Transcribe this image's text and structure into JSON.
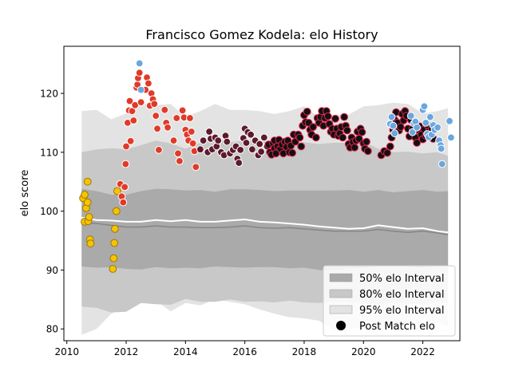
{
  "chart_data": {
    "type": "scatter",
    "title": "Francisco Gomez Kodela: elo History",
    "xlabel": "",
    "ylabel": "elo score",
    "xlim": [
      2009.9,
      2023.25
    ],
    "ylim": [
      78,
      128
    ],
    "x_ticks": [
      2010,
      2012,
      2014,
      2016,
      2018,
      2020,
      2022
    ],
    "y_ticks": [
      80,
      90,
      100,
      110,
      120
    ],
    "grid": false,
    "legend_placement": "lower right",
    "legend": [
      {
        "label": "50% elo Interval",
        "kind": "band",
        "color": "#aaaaaa"
      },
      {
        "label": "80% elo Interval",
        "kind": "band",
        "color": "#c8c8c8"
      },
      {
        "label": "95% elo Interval",
        "kind": "band",
        "color": "#e3e3e3"
      },
      {
        "label": "Post Match elo",
        "kind": "marker",
        "color": "#000000"
      }
    ],
    "bands": {
      "x": [
        2010.5,
        2011.0,
        2011.5,
        2012.0,
        2012.5,
        2013.0,
        2013.5,
        2014.0,
        2014.5,
        2015.0,
        2015.5,
        2016.0,
        2016.5,
        2017.0,
        2017.5,
        2018.0,
        2018.5,
        2019.0,
        2019.5,
        2020.0,
        2020.5,
        2021.0,
        2021.5,
        2022.0,
        2022.5,
        2022.85
      ],
      "p95_upper": [
        117.0,
        117.2,
        115.6,
        116.6,
        118.4,
        118.0,
        118.2,
        116.0,
        117.0,
        118.2,
        117.2,
        117.2,
        117.0,
        116.5,
        117.0,
        117.8,
        116.0,
        116.4,
        116.4,
        117.8,
        118.0,
        118.4,
        118.2,
        116.6,
        117.0,
        117.5
      ],
      "p80_upper": [
        110.0,
        110.5,
        110.7,
        110.5,
        111.2,
        112.0,
        111.5,
        110.6,
        111.6,
        112.3,
        111.7,
        112.0,
        112.1,
        111.6,
        111.7,
        111.7,
        111.4,
        111.6,
        111.6,
        111.8,
        110.6,
        110.0,
        110.1,
        109.8,
        110.0,
        109.4
      ],
      "p50_upper": [
        103.8,
        103.4,
        102.8,
        102.8,
        103.4,
        103.8,
        103.7,
        103.5,
        103.6,
        103.3,
        103.7,
        103.7,
        103.6,
        103.4,
        103.5,
        103.5,
        103.5,
        103.5,
        103.6,
        103.3,
        103.6,
        103.2,
        103.4,
        103.6,
        103.3,
        103.4
      ],
      "p50_lower": [
        90.6,
        90.4,
        90.5,
        90.2,
        90.1,
        90.5,
        90.3,
        90.4,
        90.3,
        90.6,
        90.5,
        90.4,
        90.5,
        90.5,
        90.3,
        90.4,
        90.0,
        89.9,
        90.3,
        90.3,
        90.6,
        90.6,
        90.6,
        90.3,
        90.8,
        90.8
      ],
      "p80_lower": [
        83.8,
        83.6,
        82.8,
        82.9,
        84.4,
        84.2,
        84.1,
        85.1,
        84.6,
        84.6,
        85.0,
        84.6,
        84.7,
        84.5,
        84.8,
        84.5,
        84.4,
        84.6,
        84.5,
        84.4,
        84.0,
        84.5,
        84.3,
        84.2,
        84.6,
        84.4
      ],
      "p95_lower": [
        79.0,
        80.0,
        82.6,
        83.8,
        85.2,
        84.8,
        83.0,
        84.4,
        84.0,
        85.0,
        84.6,
        84.2,
        83.3,
        82.6,
        82.0,
        81.8,
        81.4,
        79.8,
        80.2,
        80.0,
        80.0,
        80.4,
        81.0,
        81.8,
        81.0,
        80.5
      ],
      "median": [
        98.0,
        97.9,
        97.6,
        97.3,
        97.3,
        97.5,
        97.3,
        97.3,
        97.2,
        97.2,
        97.3,
        97.5,
        97.2,
        97.1,
        97.2,
        97.0,
        96.8,
        96.6,
        96.6,
        96.6,
        96.9,
        96.6,
        96.4,
        96.6,
        96.3,
        96.0
      ],
      "median_color": "#888888"
    },
    "trend_line": {
      "color": "#ffffff",
      "x": [
        2010.5,
        2011.0,
        2011.5,
        2012.0,
        2012.5,
        2013.0,
        2013.5,
        2014.0,
        2014.5,
        2015.0,
        2015.5,
        2016.0,
        2016.5,
        2017.0,
        2017.5,
        2018.0,
        2018.5,
        2019.0,
        2019.5,
        2020.0,
        2020.5,
        2021.0,
        2021.5,
        2022.0,
        2022.5,
        2022.85
      ],
      "y": [
        98.9,
        98.5,
        98.4,
        98.2,
        98.2,
        98.5,
        98.3,
        98.5,
        98.2,
        98.2,
        98.4,
        98.6,
        98.2,
        98.1,
        97.9,
        97.7,
        97.4,
        97.2,
        97.0,
        97.1,
        97.6,
        97.3,
        97.0,
        97.1,
        96.6,
        96.4
      ]
    },
    "series": [
      {
        "color": "#f5c400",
        "edge": "#a07800",
        "points": [
          [
            2010.55,
            102.2
          ],
          [
            2010.6,
            98.2
          ],
          [
            2010.6,
            102.8
          ],
          [
            2010.65,
            100.5
          ],
          [
            2010.7,
            105.0
          ],
          [
            2010.7,
            101.5
          ],
          [
            2010.72,
            98.3
          ],
          [
            2010.75,
            99.0
          ],
          [
            2010.78,
            95.2
          ],
          [
            2010.8,
            94.5
          ],
          [
            2011.55,
            90.2
          ],
          [
            2011.58,
            92.0
          ],
          [
            2011.6,
            94.6
          ],
          [
            2011.62,
            97.0
          ],
          [
            2011.67,
            100.0
          ],
          [
            2011.7,
            103.4
          ]
        ]
      },
      {
        "color": "#e03a28",
        "edge": "#ffffff",
        "points": [
          [
            2011.8,
            104.6
          ],
          [
            2011.85,
            102.5
          ],
          [
            2011.9,
            101.5
          ],
          [
            2011.95,
            104.1
          ],
          [
            2011.98,
            108.0
          ],
          [
            2012.0,
            111.0
          ],
          [
            2012.05,
            115.0
          ],
          [
            2012.1,
            117.1
          ],
          [
            2012.12,
            118.7
          ],
          [
            2012.15,
            111.9
          ],
          [
            2012.2,
            117.0
          ],
          [
            2012.25,
            115.4
          ],
          [
            2012.3,
            118.0
          ],
          [
            2012.35,
            121.0
          ],
          [
            2012.38,
            121.5
          ],
          [
            2012.4,
            122.6
          ],
          [
            2012.45,
            123.5
          ],
          [
            2012.5,
            118.5
          ],
          [
            2012.65,
            120.6
          ],
          [
            2012.7,
            122.7
          ],
          [
            2012.75,
            121.7
          ],
          [
            2012.8,
            117.9
          ],
          [
            2012.85,
            120.0
          ],
          [
            2012.9,
            119.0
          ],
          [
            2012.95,
            118.2
          ],
          [
            2013.0,
            116.2
          ],
          [
            2013.05,
            114.0
          ],
          [
            2013.1,
            110.4
          ],
          [
            2013.3,
            117.2
          ],
          [
            2013.35,
            115.0
          ],
          [
            2013.4,
            114.2
          ],
          [
            2013.6,
            112.0
          ],
          [
            2013.7,
            115.8
          ],
          [
            2013.75,
            109.8
          ],
          [
            2013.8,
            108.5
          ],
          [
            2013.9,
            117.1
          ],
          [
            2013.95,
            115.9
          ],
          [
            2014.0,
            113.8
          ],
          [
            2014.05,
            113.0
          ],
          [
            2014.1,
            112.0
          ],
          [
            2014.15,
            115.8
          ],
          [
            2014.2,
            113.5
          ],
          [
            2014.25,
            111.5
          ],
          [
            2014.3,
            110.2
          ],
          [
            2014.35,
            107.5
          ]
        ]
      },
      {
        "color": "#5c1a2c",
        "edge": "#ffffff",
        "points": [
          [
            2014.5,
            110.5
          ],
          [
            2014.6,
            112.0
          ],
          [
            2014.75,
            110.0
          ],
          [
            2014.8,
            113.5
          ],
          [
            2014.85,
            112.3
          ],
          [
            2014.9,
            110.5
          ],
          [
            2015.0,
            112.5
          ],
          [
            2015.05,
            111.0
          ],
          [
            2015.1,
            112.0
          ],
          [
            2015.2,
            110.0
          ],
          [
            2015.3,
            109.5
          ],
          [
            2015.35,
            112.8
          ],
          [
            2015.4,
            111.8
          ],
          [
            2015.5,
            109.8
          ],
          [
            2015.6,
            110.4
          ],
          [
            2015.7,
            111.0
          ],
          [
            2015.75,
            108.9
          ],
          [
            2015.8,
            108.2
          ],
          [
            2015.85,
            110.4
          ],
          [
            2015.95,
            112.4
          ],
          [
            2016.0,
            114.0
          ],
          [
            2016.05,
            111.6
          ],
          [
            2016.1,
            113.4
          ],
          [
            2016.2,
            113.0
          ],
          [
            2016.25,
            110.5
          ],
          [
            2016.35,
            112.0
          ],
          [
            2016.45,
            109.5
          ],
          [
            2016.5,
            111.4
          ],
          [
            2016.55,
            110.1
          ],
          [
            2016.65,
            112.5
          ],
          [
            2016.75,
            111.0
          ]
        ]
      },
      {
        "color": "#111111",
        "edge": "#e0204a",
        "points": [
          [
            2016.8,
            111.3
          ],
          [
            2016.85,
            110.0
          ],
          [
            2016.9,
            109.6
          ],
          [
            2016.95,
            111.5
          ],
          [
            2017.0,
            112.0
          ],
          [
            2017.0,
            110.7
          ],
          [
            2017.05,
            109.8
          ],
          [
            2017.1,
            111.0
          ],
          [
            2017.15,
            112.1
          ],
          [
            2017.2,
            110.6
          ],
          [
            2017.25,
            111.3
          ],
          [
            2017.3,
            109.8
          ],
          [
            2017.35,
            111.8
          ],
          [
            2017.4,
            110.9
          ],
          [
            2017.45,
            112.0
          ],
          [
            2017.5,
            110.0
          ],
          [
            2017.55,
            111.1
          ],
          [
            2017.6,
            109.9
          ],
          [
            2017.65,
            113.0
          ],
          [
            2017.7,
            111.8
          ],
          [
            2017.8,
            113.0
          ],
          [
            2017.85,
            112.5
          ],
          [
            2017.9,
            111.0
          ],
          [
            2017.95,
            114.5
          ],
          [
            2018.0,
            116.3
          ],
          [
            2018.05,
            115.1
          ],
          [
            2018.1,
            116.9
          ],
          [
            2018.15,
            115.0
          ],
          [
            2018.2,
            113.8
          ],
          [
            2018.25,
            113.0
          ],
          [
            2018.3,
            114.3
          ],
          [
            2018.4,
            112.5
          ],
          [
            2018.45,
            115.8
          ],
          [
            2018.5,
            115.0
          ],
          [
            2018.55,
            116.0
          ],
          [
            2018.6,
            117.0
          ],
          [
            2018.65,
            114.5
          ],
          [
            2018.7,
            115.8
          ],
          [
            2018.75,
            117.0
          ],
          [
            2018.8,
            116.1
          ],
          [
            2018.85,
            114.8
          ],
          [
            2018.9,
            113.5
          ],
          [
            2018.95,
            114.0
          ],
          [
            2019.0,
            113.0
          ],
          [
            2019.05,
            115.7
          ],
          [
            2019.1,
            114.0
          ],
          [
            2019.15,
            112.8
          ],
          [
            2019.2,
            113.2
          ],
          [
            2019.25,
            114.3
          ],
          [
            2019.3,
            112.5
          ],
          [
            2019.35,
            116.0
          ],
          [
            2019.4,
            114.5
          ],
          [
            2019.45,
            113.7
          ],
          [
            2019.5,
            111.4
          ],
          [
            2019.55,
            110.8
          ],
          [
            2019.6,
            112.5
          ],
          [
            2019.65,
            111.7
          ],
          [
            2019.7,
            110.8
          ],
          [
            2019.75,
            112.0
          ],
          [
            2019.8,
            113.5
          ],
          [
            2019.85,
            112.3
          ],
          [
            2019.9,
            114.0
          ],
          [
            2019.95,
            113.4
          ],
          [
            2020.0,
            111.5
          ],
          [
            2020.05,
            110.6
          ],
          [
            2020.1,
            111.8
          ],
          [
            2020.15,
            110.2
          ],
          [
            2020.6,
            109.5
          ],
          [
            2020.7,
            110.2
          ],
          [
            2020.8,
            109.9
          ],
          [
            2020.9,
            111.0
          ],
          [
            2020.95,
            112.5
          ],
          [
            2021.0,
            113.8
          ],
          [
            2021.05,
            115.5
          ],
          [
            2021.1,
            116.8
          ],
          [
            2021.15,
            115.0
          ],
          [
            2021.2,
            113.7
          ],
          [
            2021.25,
            114.3
          ],
          [
            2021.3,
            116.5
          ],
          [
            2021.35,
            115.4
          ],
          [
            2021.4,
            117.0
          ],
          [
            2021.45,
            116.2
          ],
          [
            2021.5,
            114.0
          ],
          [
            2021.55,
            112.7
          ],
          [
            2021.6,
            115.5
          ],
          [
            2021.65,
            114.0
          ],
          [
            2021.7,
            113.5
          ],
          [
            2021.75,
            112.5
          ],
          [
            2021.8,
            111.6
          ],
          [
            2021.85,
            113.8
          ],
          [
            2021.9,
            114.4
          ],
          [
            2021.95,
            113.0
          ],
          [
            2022.0,
            112.2
          ],
          [
            2022.05,
            113.9
          ],
          [
            2022.1,
            112.8
          ],
          [
            2022.15,
            114.6
          ],
          [
            2022.2,
            113.5
          ],
          [
            2022.25,
            112.6
          ],
          [
            2022.3,
            114.0
          ],
          [
            2022.35,
            112.3
          ]
        ]
      },
      {
        "color": "#6aa6e0",
        "edge": "#ffffff",
        "points": [
          [
            2012.45,
            125.1
          ],
          [
            2012.5,
            120.6
          ],
          [
            2020.9,
            114.8
          ],
          [
            2020.95,
            116.0
          ],
          [
            2021.0,
            114.5
          ],
          [
            2021.05,
            113.2
          ],
          [
            2021.6,
            116.2
          ],
          [
            2021.65,
            113.4
          ],
          [
            2021.7,
            114.9
          ],
          [
            2021.75,
            115.2
          ],
          [
            2021.8,
            114.2
          ],
          [
            2022.0,
            117.2
          ],
          [
            2022.05,
            117.8
          ],
          [
            2022.1,
            115.0
          ],
          [
            2022.15,
            113.1
          ],
          [
            2022.2,
            112.6
          ],
          [
            2022.25,
            116.0
          ],
          [
            2022.3,
            113.0
          ],
          [
            2022.35,
            114.6
          ],
          [
            2022.4,
            113.8
          ],
          [
            2022.5,
            114.2
          ],
          [
            2022.55,
            112.0
          ],
          [
            2022.6,
            111.2
          ],
          [
            2022.62,
            110.6
          ],
          [
            2022.65,
            108.0
          ],
          [
            2022.9,
            115.3
          ],
          [
            2022.95,
            112.5
          ]
        ]
      }
    ]
  }
}
